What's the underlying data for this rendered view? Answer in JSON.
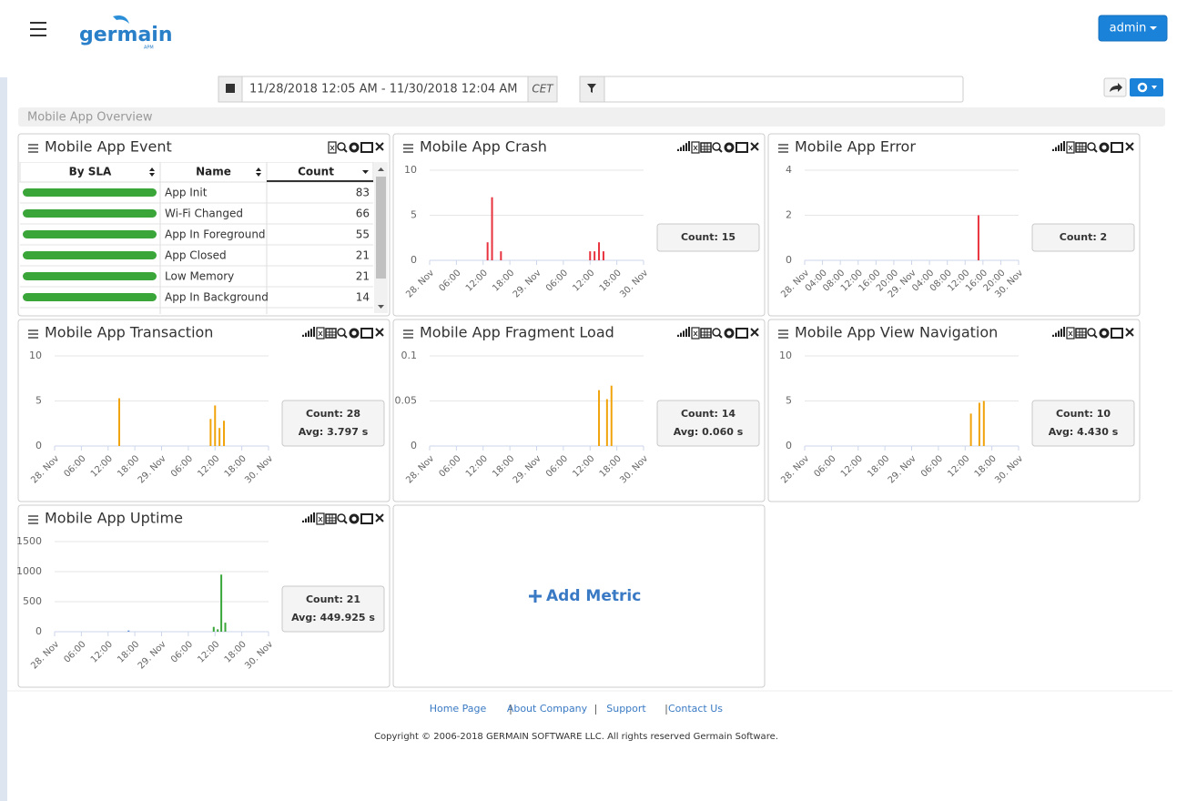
{
  "header": {
    "logo": "germain",
    "logo_sub": "APM",
    "user_menu": "admin"
  },
  "toolbar": {
    "date_range": "11/28/2018 12:05 AM - 11/30/2018 12:04 AM",
    "timezone": "CET"
  },
  "breadcrumb": "Mobile App Overview",
  "panels": [
    {
      "title": "Mobile App Event",
      "table": {
        "headers": [
          "By SLA",
          "Name",
          "Count"
        ],
        "rows": [
          [
            "App Init",
            83
          ],
          [
            "Wi-Fi Changed",
            66
          ],
          [
            "App In Foreground",
            55
          ],
          [
            "App Closed",
            21
          ],
          [
            "Low Memory",
            21
          ],
          [
            "App In Background",
            14
          ]
        ]
      }
    },
    {
      "title": "Mobile App Crash",
      "summary": [
        "Count: 15"
      ],
      "chart_data": {
        "type": "bar",
        "x": [
          13,
          14,
          16,
          36,
          37,
          38,
          39
        ],
        "series": [
          {
            "color": "#e8333f",
            "values": [
              2,
              7,
              1,
              1,
              1,
              2,
              1
            ]
          }
        ],
        "xlim": [
          0,
          48
        ],
        "xticks": [
          {
            "value": 0,
            "label": "28. Nov"
          },
          {
            "value": 6,
            "label": "06:00"
          },
          {
            "value": 12,
            "label": "12:00"
          },
          {
            "value": 18,
            "label": "18:00"
          },
          {
            "value": 24,
            "label": "29. Nov"
          },
          {
            "value": 30,
            "label": "06:00"
          },
          {
            "value": 36,
            "label": "12:00"
          },
          {
            "value": 42,
            "label": "18:00"
          },
          {
            "value": 48,
            "label": "30. Nov"
          }
        ],
        "ylim": [
          0,
          10
        ],
        "yticks": [
          0,
          5,
          10
        ],
        "grid": true
      }
    },
    {
      "title": "Mobile App Error",
      "summary": [
        "Count: 2"
      ],
      "chart_data": {
        "type": "bar",
        "x": [
          39
        ],
        "series": [
          {
            "color": "#e8333f",
            "values": [
              2
            ]
          }
        ],
        "xlim": [
          0,
          48
        ],
        "xticks": [
          {
            "value": 0,
            "label": "28. Nov"
          },
          {
            "value": 4,
            "label": "04:00"
          },
          {
            "value": 8,
            "label": "08:00"
          },
          {
            "value": 12,
            "label": "12:00"
          },
          {
            "value": 16,
            "label": "16:00"
          },
          {
            "value": 20,
            "label": "20:00"
          },
          {
            "value": 24,
            "label": "29. Nov"
          },
          {
            "value": 28,
            "label": "04:00"
          },
          {
            "value": 32,
            "label": "08:00"
          },
          {
            "value": 36,
            "label": "12:00"
          },
          {
            "value": 40,
            "label": "16:00"
          },
          {
            "value": 44,
            "label": "20:00"
          },
          {
            "value": 48,
            "label": "30. Nov"
          }
        ],
        "ylim": [
          0,
          4
        ],
        "yticks": [
          0,
          2,
          4
        ],
        "grid": true
      }
    },
    {
      "title": "Mobile App Transaction",
      "summary": [
        "Count: 28",
        "Avg: 3.797 s"
      ],
      "chart_data": {
        "type": "bar",
        "x": [
          14.5,
          35,
          36,
          37,
          38
        ],
        "series": [
          {
            "color": "#f0a30a",
            "values": [
              5.3,
              3,
              4.5,
              2,
              2.8
            ]
          }
        ],
        "xlim": [
          0,
          48
        ],
        "xticks": [
          {
            "value": 0,
            "label": "28. Nov"
          },
          {
            "value": 6,
            "label": "06:00"
          },
          {
            "value": 12,
            "label": "12:00"
          },
          {
            "value": 18,
            "label": "18:00"
          },
          {
            "value": 24,
            "label": "29. Nov"
          },
          {
            "value": 30,
            "label": "06:00"
          },
          {
            "value": 36,
            "label": "12:00"
          },
          {
            "value": 42,
            "label": "18:00"
          },
          {
            "value": 48,
            "label": "30. Nov"
          }
        ],
        "ylim": [
          0,
          10
        ],
        "yticks": [
          0,
          5,
          10
        ],
        "grid": true
      }
    },
    {
      "title": "Mobile App Fragment Load",
      "summary": [
        "Count: 14",
        "Avg: 0.060 s"
      ],
      "chart_data": {
        "type": "bar",
        "x": [
          38,
          39.8,
          40.8
        ],
        "series": [
          {
            "color": "#f0a30a",
            "values": [
              0.062,
              0.052,
              0.067
            ]
          }
        ],
        "xlim": [
          0,
          48
        ],
        "xticks": [
          {
            "value": 0,
            "label": "28. Nov"
          },
          {
            "value": 6,
            "label": "06:00"
          },
          {
            "value": 12,
            "label": "12:00"
          },
          {
            "value": 18,
            "label": "18:00"
          },
          {
            "value": 24,
            "label": "29. Nov"
          },
          {
            "value": 30,
            "label": "06:00"
          },
          {
            "value": 36,
            "label": "12:00"
          },
          {
            "value": 42,
            "label": "18:00"
          },
          {
            "value": 48,
            "label": "30. Nov"
          }
        ],
        "ylim": [
          0,
          0.1
        ],
        "yticks": [
          0,
          0.05,
          0.1
        ],
        "grid": true
      }
    },
    {
      "title": "Mobile App View Navigation",
      "summary": [
        "Count: 10",
        "Avg: 4.430 s"
      ],
      "chart_data": {
        "type": "bar",
        "x": [
          37.3,
          39.2,
          40.2
        ],
        "series": [
          {
            "color": "#f0a30a",
            "values": [
              3.6,
              4.8,
              5
            ]
          }
        ],
        "xlim": [
          0,
          48
        ],
        "xticks": [
          {
            "value": 0,
            "label": "28. Nov"
          },
          {
            "value": 6,
            "label": "06:00"
          },
          {
            "value": 12,
            "label": "12:00"
          },
          {
            "value": 18,
            "label": "18:00"
          },
          {
            "value": 24,
            "label": "29. Nov"
          },
          {
            "value": 30,
            "label": "06:00"
          },
          {
            "value": 36,
            "label": "12:00"
          },
          {
            "value": 42,
            "label": "18:00"
          },
          {
            "value": 48,
            "label": "30. Nov"
          }
        ],
        "ylim": [
          0,
          10
        ],
        "yticks": [
          0,
          5,
          10
        ],
        "grid": true
      }
    },
    {
      "title": "Mobile App Uptime",
      "summary": [
        "Count: 21",
        "Avg: 449.925 s"
      ],
      "chart_data": {
        "type": "bar",
        "x": [
          16.6,
          35.7,
          36.6,
          37.4,
          38.3
        ],
        "series": [
          {
            "color": "#5b8fd6",
            "values": [
              20,
              null,
              null,
              null,
              null
            ]
          },
          {
            "color": "#3aa63a",
            "values": [
              null,
              80,
              40,
              950,
              150
            ]
          }
        ],
        "xlim": [
          0,
          48
        ],
        "xticks": [
          {
            "value": 0,
            "label": "28. Nov"
          },
          {
            "value": 6,
            "label": "06:00"
          },
          {
            "value": 12,
            "label": "12:00"
          },
          {
            "value": 18,
            "label": "18:00"
          },
          {
            "value": 24,
            "label": "29. Nov"
          },
          {
            "value": 30,
            "label": "06:00"
          },
          {
            "value": 36,
            "label": "12:00"
          },
          {
            "value": 42,
            "label": "18:00"
          },
          {
            "value": 48,
            "label": "30. Nov"
          }
        ],
        "ylim": [
          0,
          1500
        ],
        "yticks": [
          0,
          500,
          1000,
          1500
        ],
        "grid": true
      }
    }
  ],
  "add_metric": "Add Metric",
  "footer": {
    "links": [
      "Home Page",
      "About Company",
      "Support",
      "Contact Us"
    ],
    "copyright": "Copyright © 2006-2018 GERMAIN SOFTWARE LLC. All rights reserved Germain Software."
  }
}
